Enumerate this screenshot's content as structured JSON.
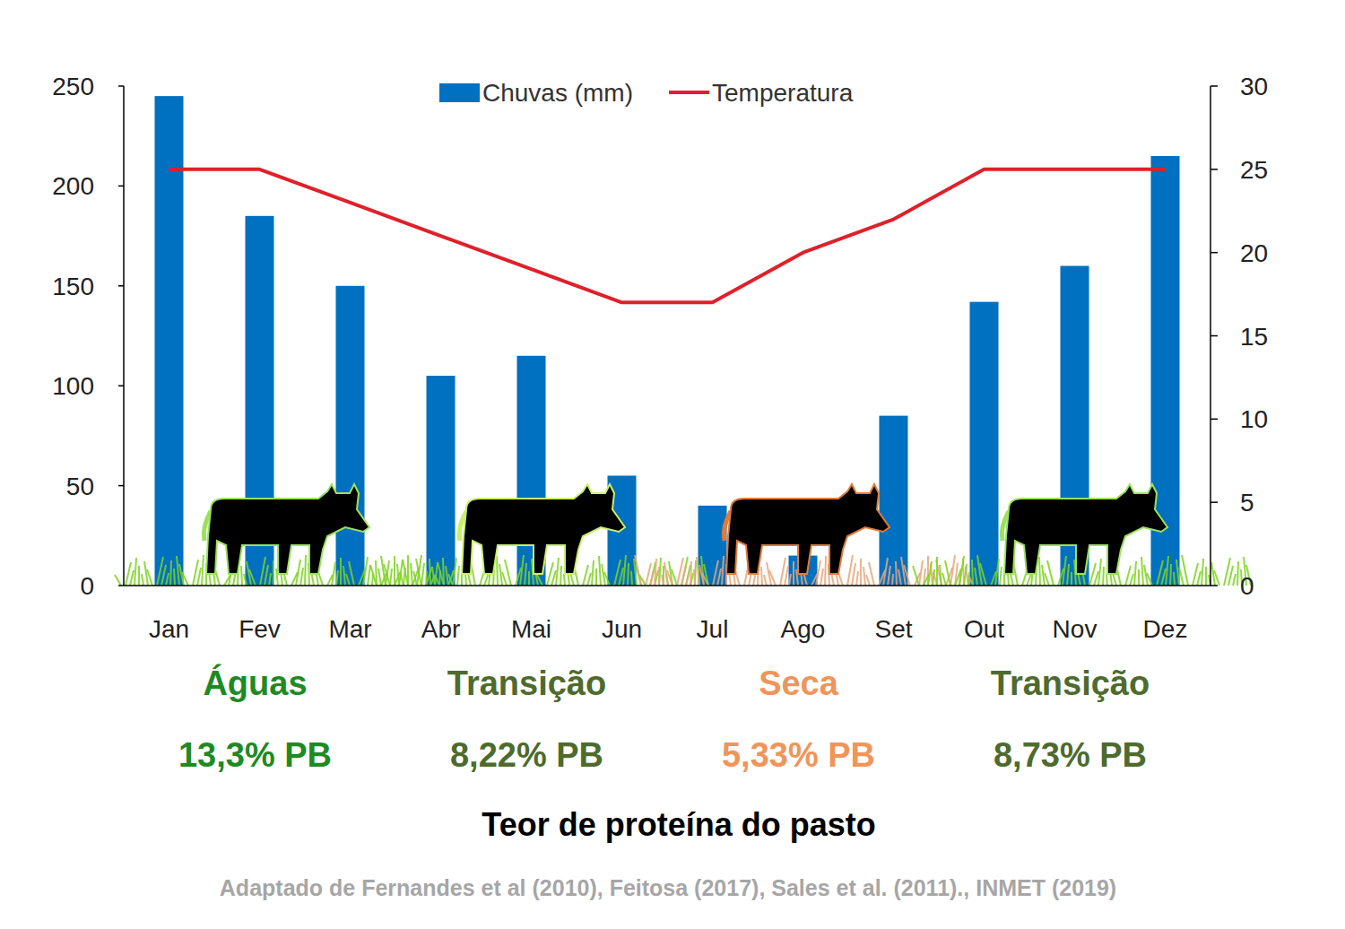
{
  "chart_data": {
    "type": "bar",
    "categories": [
      "Jan",
      "Fev",
      "Mar",
      "Abr",
      "Mai",
      "Jun",
      "Jul",
      "Ago",
      "Set",
      "Out",
      "Nov",
      "Dez"
    ],
    "series": [
      {
        "name": "Chuvas (mm)",
        "type": "bar",
        "color": "#0070c0",
        "values": [
          245,
          185,
          150,
          105,
          115,
          55,
          40,
          15,
          85,
          142,
          160,
          215
        ]
      },
      {
        "name": "Temperatura",
        "type": "line",
        "color": "#e0202a",
        "axis": "y2",
        "values": [
          25,
          25,
          23,
          21,
          19,
          17,
          17,
          20,
          22,
          25,
          25,
          25
        ]
      }
    ],
    "ylim": [
      0,
      250
    ],
    "yticks": [
      0,
      50,
      100,
      150,
      200,
      250
    ],
    "y2lim": [
      0,
      30
    ],
    "y2ticks": [
      0,
      5,
      10,
      15,
      20,
      25,
      30
    ],
    "grid": false,
    "legend": "top",
    "seasons": [
      {
        "label": "Águas",
        "protein": "13,3% PB",
        "color": "#1f8a24"
      },
      {
        "label": "Transição",
        "protein": "8,22% PB",
        "color": "#4e6b2e"
      },
      {
        "label": "Seca",
        "protein": "5,33% PB",
        "color": "#f0955a"
      },
      {
        "label": "Transição",
        "protein": "8,73% PB",
        "color": "#4e6b2e"
      }
    ],
    "protein_title": "Teor de proteína do pasto",
    "source": "Adaptado de Fernandes et al (2010), Feitosa (2017), Sales et al. (2011)., INMET (2019)"
  }
}
